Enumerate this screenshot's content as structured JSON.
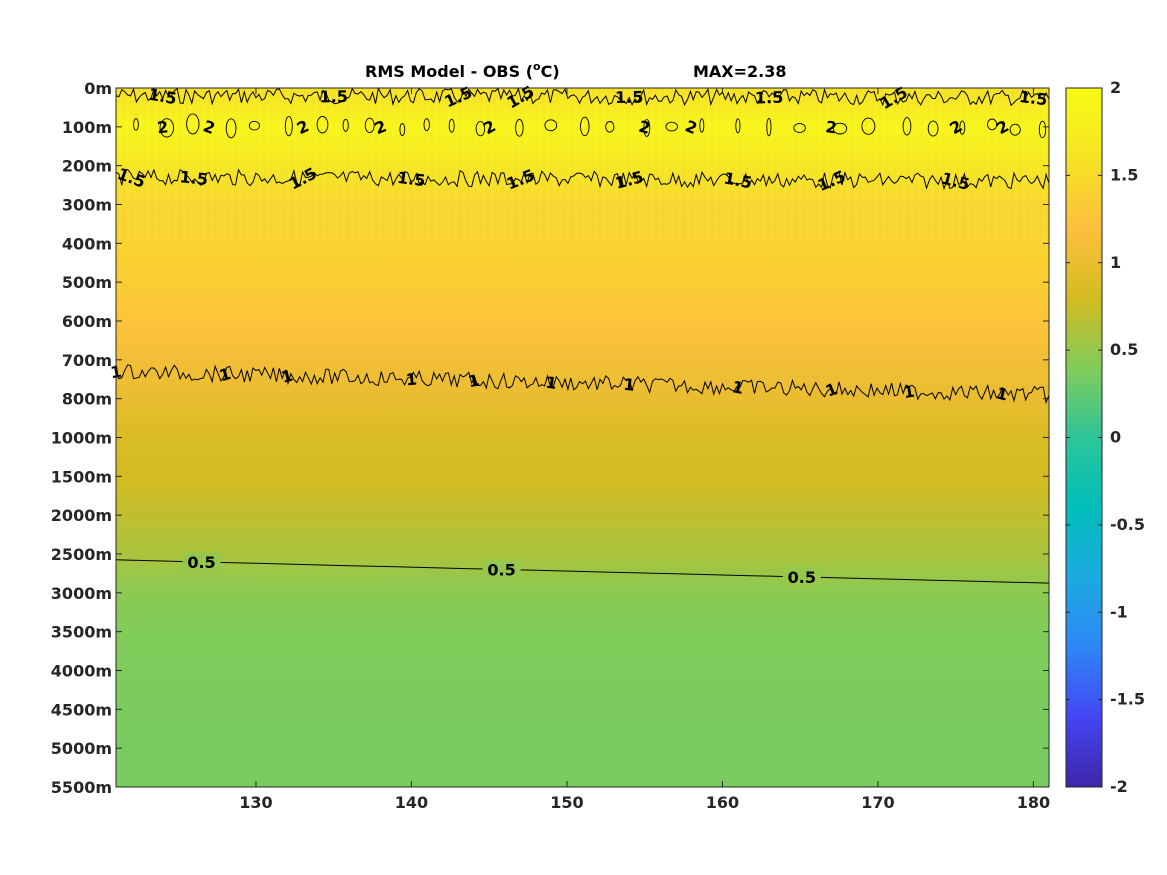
{
  "chart_data": {
    "type": "heatmap",
    "title": "RMS Model - OBS (",
    "title_super": "o",
    "title_unit": "C)",
    "max_label": "MAX=2.38",
    "x_ticks": [
      "130",
      "140",
      "150",
      "160",
      "170",
      "180"
    ],
    "x_tick_values": [
      130,
      140,
      150,
      160,
      170,
      180
    ],
    "xlim": [
      121,
      181
    ],
    "y_ticks": [
      "0m",
      "100m",
      "200m",
      "300m",
      "400m",
      "500m",
      "600m",
      "700m",
      "800m",
      "1000m",
      "1500m",
      "2000m",
      "2500m",
      "3000m",
      "3500m",
      "4000m",
      "4500m",
      "5000m",
      "5500m"
    ],
    "color_ticks": [
      "2",
      "1.5",
      "1",
      "0.5",
      "0",
      "-0.5",
      "-1",
      "-1.5",
      "-2"
    ],
    "color_tick_values": [
      2,
      1.5,
      1,
      0.5,
      0,
      -0.5,
      -1,
      -1.5,
      -2
    ],
    "clim": [
      -2,
      2
    ],
    "colormap": "parula",
    "colormap_stops": [
      "#3e26a8",
      "#4446f3",
      "#2e87f7",
      "#1caadf",
      "#00bdba",
      "#2ec598",
      "#81cc59",
      "#d4bb21",
      "#fdbf3e",
      "#f5e422",
      "#f9fb15"
    ],
    "depth_profile": [
      {
        "depth": "0m",
        "value": 1.55
      },
      {
        "depth": "100m",
        "value": 1.9
      },
      {
        "depth": "200m",
        "value": 1.65
      },
      {
        "depth": "300m",
        "value": 1.45
      },
      {
        "depth": "400m",
        "value": 1.42
      },
      {
        "depth": "500m",
        "value": 1.35
      },
      {
        "depth": "600m",
        "value": 1.25
      },
      {
        "depth": "700m",
        "value": 1.1
      },
      {
        "depth": "800m",
        "value": 1.0
      },
      {
        "depth": "1000m",
        "value": 0.85
      },
      {
        "depth": "1500m",
        "value": 0.8
      },
      {
        "depth": "2000m",
        "value": 0.7
      },
      {
        "depth": "2500m",
        "value": 0.6
      },
      {
        "depth": "3000m",
        "value": 0.45
      },
      {
        "depth": "3500m",
        "value": 0.4
      },
      {
        "depth": "4000m",
        "value": 0.38
      },
      {
        "depth": "4500m",
        "value": 0.37
      },
      {
        "depth": "5000m",
        "value": 0.36
      },
      {
        "depth": "5500m",
        "value": 0.36
      }
    ],
    "contours": [
      {
        "level": "1.5",
        "depth_index_left": 0.2,
        "depth_index_right": 0.25,
        "wiggly": true,
        "label_x": [
          124,
          135,
          143,
          147,
          154,
          163,
          171,
          180
        ]
      },
      {
        "level": "2",
        "depth_index_left": 1.0,
        "depth_index_right": 1.0,
        "wiggly": true,
        "islands": true,
        "label_x": [
          124,
          127,
          133,
          138,
          145,
          155,
          158,
          167,
          175,
          178
        ]
      },
      {
        "level": "1.5",
        "depth_index_left": 2.3,
        "depth_index_right": 2.4,
        "wiggly": true,
        "label_x": [
          122,
          126,
          133,
          140,
          147,
          154,
          161,
          167,
          175
        ]
      },
      {
        "level": "1",
        "depth_index_left": 7.3,
        "depth_index_right": 7.9,
        "wiggly": true,
        "label_x": [
          121,
          128,
          132,
          140,
          144,
          149,
          154,
          161,
          167,
          172,
          178
        ]
      },
      {
        "level": "0.5",
        "depth_index_left": 12.15,
        "depth_index_right": 12.75,
        "wiggly": false,
        "label_x": [
          126.5,
          145.8,
          165.1
        ]
      }
    ]
  }
}
